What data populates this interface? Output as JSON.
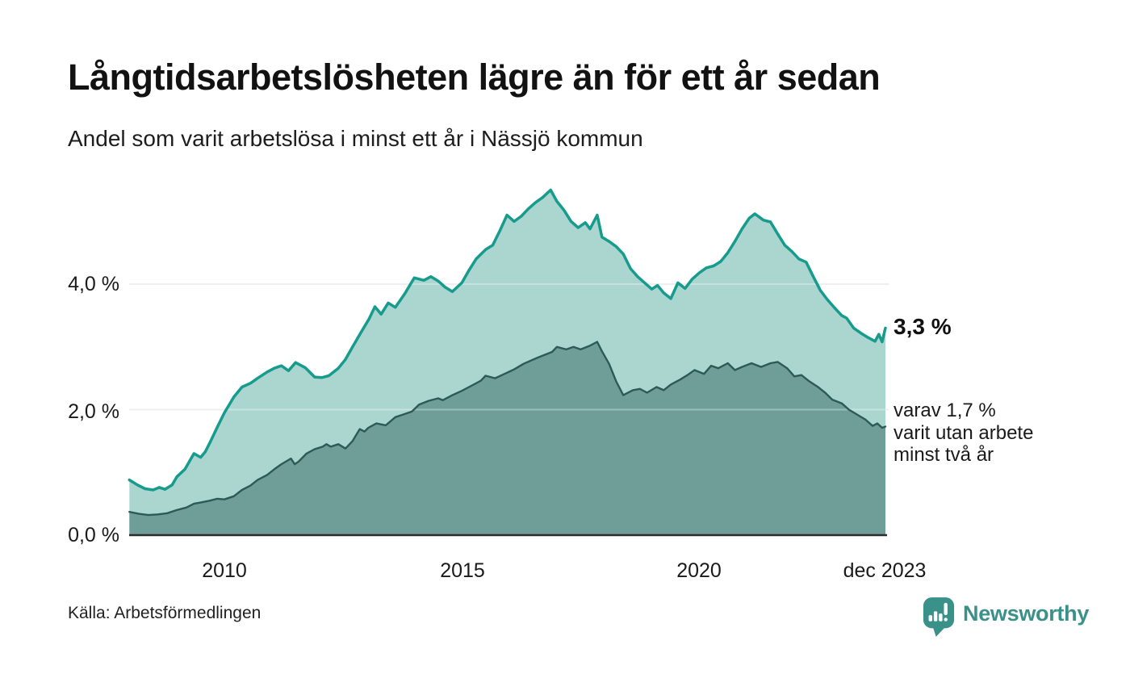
{
  "header": {
    "title": "Långtidsarbetslösheten lägre än för ett år sedan",
    "subtitle": "Andel som varit arbetslösa i minst ett år i Nässjö kommun"
  },
  "annotations": {
    "latest_total": "3,3 %",
    "secondary_line1": "varav 1,7 %",
    "secondary_line2": "varit utan arbete",
    "secondary_line3": "minst två år"
  },
  "footer": {
    "source": "Källa: Arbetsförmedlingen",
    "brand": "Newsworthy"
  },
  "colors": {
    "total_line": "#169b8d",
    "total_fill": "#abd5cf",
    "two_year_line": "#2e5a55",
    "two_year_fill": "#6f9e99",
    "gridline": "#e3e7e7",
    "axis_line": "#2b2b2b",
    "brand_teal": "#3a9189",
    "text": "#1a1a1a"
  },
  "chart_data": {
    "type": "area",
    "title": "Långtidsarbetslösheten lägre än för ett år sedan",
    "subtitle": "Andel som varit arbetslösa i minst ett år i Nässjö kommun",
    "unit": "%",
    "xlim": [
      2008.0,
      2023.92
    ],
    "ylim": [
      0,
      5.7
    ],
    "grid": "horizontal",
    "legend_position": "right-annotations",
    "x_ticks": [
      {
        "x": 2010,
        "label": "2010"
      },
      {
        "x": 2015,
        "label": "2015"
      },
      {
        "x": 2020,
        "label": "2020"
      },
      {
        "x": 2023.92,
        "label": "dec 2023"
      }
    ],
    "y_ticks": [
      {
        "value": 0,
        "label": "0,0 %"
      },
      {
        "value": 2,
        "label": "2,0 %"
      },
      {
        "value": 4,
        "label": "4,0 %"
      }
    ],
    "series": [
      {
        "name": "Andel arbetslösa minst ett år",
        "latest_label": "3,3 %",
        "color": "#169b8d",
        "fill": "#abd5cf",
        "points": [
          [
            2008.0,
            0.88
          ],
          [
            2008.17,
            0.8
          ],
          [
            2008.33,
            0.74
          ],
          [
            2008.5,
            0.72
          ],
          [
            2008.63,
            0.76
          ],
          [
            2008.75,
            0.73
          ],
          [
            2008.9,
            0.8
          ],
          [
            2009.0,
            0.93
          ],
          [
            2009.17,
            1.05
          ],
          [
            2009.36,
            1.3
          ],
          [
            2009.5,
            1.24
          ],
          [
            2009.6,
            1.33
          ],
          [
            2009.7,
            1.48
          ],
          [
            2009.85,
            1.72
          ],
          [
            2010.0,
            1.95
          ],
          [
            2010.2,
            2.2
          ],
          [
            2010.37,
            2.36
          ],
          [
            2010.55,
            2.42
          ],
          [
            2010.7,
            2.5
          ],
          [
            2010.9,
            2.6
          ],
          [
            2011.05,
            2.66
          ],
          [
            2011.2,
            2.7
          ],
          [
            2011.35,
            2.62
          ],
          [
            2011.5,
            2.75
          ],
          [
            2011.7,
            2.67
          ],
          [
            2011.9,
            2.52
          ],
          [
            2012.05,
            2.51
          ],
          [
            2012.2,
            2.54
          ],
          [
            2012.4,
            2.66
          ],
          [
            2012.55,
            2.8
          ],
          [
            2012.7,
            3.0
          ],
          [
            2012.9,
            3.26
          ],
          [
            2013.05,
            3.45
          ],
          [
            2013.17,
            3.64
          ],
          [
            2013.3,
            3.52
          ],
          [
            2013.45,
            3.7
          ],
          [
            2013.6,
            3.63
          ],
          [
            2013.8,
            3.85
          ],
          [
            2014.0,
            4.1
          ],
          [
            2014.2,
            4.06
          ],
          [
            2014.35,
            4.12
          ],
          [
            2014.5,
            4.05
          ],
          [
            2014.65,
            3.95
          ],
          [
            2014.8,
            3.88
          ],
          [
            2015.0,
            4.02
          ],
          [
            2015.15,
            4.22
          ],
          [
            2015.3,
            4.4
          ],
          [
            2015.5,
            4.55
          ],
          [
            2015.65,
            4.62
          ],
          [
            2015.8,
            4.85
          ],
          [
            2015.95,
            5.1
          ],
          [
            2016.1,
            5.0
          ],
          [
            2016.25,
            5.08
          ],
          [
            2016.4,
            5.2
          ],
          [
            2016.55,
            5.3
          ],
          [
            2016.7,
            5.38
          ],
          [
            2016.87,
            5.5
          ],
          [
            2017.0,
            5.32
          ],
          [
            2017.15,
            5.18
          ],
          [
            2017.3,
            5.0
          ],
          [
            2017.45,
            4.9
          ],
          [
            2017.6,
            4.98
          ],
          [
            2017.7,
            4.88
          ],
          [
            2017.85,
            5.1
          ],
          [
            2017.95,
            4.75
          ],
          [
            2018.1,
            4.68
          ],
          [
            2018.25,
            4.6
          ],
          [
            2018.4,
            4.48
          ],
          [
            2018.55,
            4.25
          ],
          [
            2018.7,
            4.12
          ],
          [
            2018.85,
            4.02
          ],
          [
            2019.0,
            3.92
          ],
          [
            2019.12,
            3.98
          ],
          [
            2019.25,
            3.86
          ],
          [
            2019.4,
            3.77
          ],
          [
            2019.55,
            4.02
          ],
          [
            2019.7,
            3.93
          ],
          [
            2019.85,
            4.08
          ],
          [
            2020.0,
            4.18
          ],
          [
            2020.15,
            4.26
          ],
          [
            2020.3,
            4.29
          ],
          [
            2020.45,
            4.36
          ],
          [
            2020.6,
            4.5
          ],
          [
            2020.75,
            4.68
          ],
          [
            2020.9,
            4.88
          ],
          [
            2021.05,
            5.05
          ],
          [
            2021.17,
            5.12
          ],
          [
            2021.35,
            5.02
          ],
          [
            2021.5,
            4.99
          ],
          [
            2021.65,
            4.8
          ],
          [
            2021.8,
            4.62
          ],
          [
            2021.95,
            4.52
          ],
          [
            2022.1,
            4.4
          ],
          [
            2022.25,
            4.35
          ],
          [
            2022.4,
            4.12
          ],
          [
            2022.55,
            3.9
          ],
          [
            2022.7,
            3.75
          ],
          [
            2022.85,
            3.62
          ],
          [
            2023.0,
            3.5
          ],
          [
            2023.1,
            3.46
          ],
          [
            2023.25,
            3.3
          ],
          [
            2023.4,
            3.22
          ],
          [
            2023.55,
            3.15
          ],
          [
            2023.7,
            3.09
          ],
          [
            2023.78,
            3.2
          ],
          [
            2023.85,
            3.08
          ],
          [
            2023.92,
            3.3
          ]
        ]
      },
      {
        "name": "varav arbetslösa minst två år",
        "latest_label": "1,7 %",
        "color": "#2e5a55",
        "fill": "#6f9e99",
        "points": [
          [
            2008.0,
            0.37
          ],
          [
            2008.2,
            0.34
          ],
          [
            2008.4,
            0.32
          ],
          [
            2008.6,
            0.33
          ],
          [
            2008.8,
            0.35
          ],
          [
            2009.0,
            0.4
          ],
          [
            2009.2,
            0.44
          ],
          [
            2009.36,
            0.5
          ],
          [
            2009.5,
            0.52
          ],
          [
            2009.7,
            0.55
          ],
          [
            2009.85,
            0.58
          ],
          [
            2010.0,
            0.57
          ],
          [
            2010.2,
            0.62
          ],
          [
            2010.37,
            0.72
          ],
          [
            2010.55,
            0.79
          ],
          [
            2010.7,
            0.88
          ],
          [
            2010.9,
            0.96
          ],
          [
            2011.05,
            1.05
          ],
          [
            2011.2,
            1.13
          ],
          [
            2011.4,
            1.22
          ],
          [
            2011.48,
            1.13
          ],
          [
            2011.56,
            1.17
          ],
          [
            2011.73,
            1.3
          ],
          [
            2011.9,
            1.37
          ],
          [
            2012.07,
            1.41
          ],
          [
            2012.15,
            1.45
          ],
          [
            2012.24,
            1.41
          ],
          [
            2012.4,
            1.45
          ],
          [
            2012.55,
            1.38
          ],
          [
            2012.7,
            1.5
          ],
          [
            2012.85,
            1.69
          ],
          [
            2012.95,
            1.65
          ],
          [
            2013.03,
            1.71
          ],
          [
            2013.2,
            1.78
          ],
          [
            2013.4,
            1.75
          ],
          [
            2013.6,
            1.88
          ],
          [
            2013.8,
            1.93
          ],
          [
            2013.95,
            1.97
          ],
          [
            2014.1,
            2.08
          ],
          [
            2014.3,
            2.14
          ],
          [
            2014.5,
            2.18
          ],
          [
            2014.6,
            2.15
          ],
          [
            2014.8,
            2.23
          ],
          [
            2015.0,
            2.3
          ],
          [
            2015.2,
            2.38
          ],
          [
            2015.4,
            2.46
          ],
          [
            2015.5,
            2.54
          ],
          [
            2015.7,
            2.5
          ],
          [
            2015.9,
            2.57
          ],
          [
            2016.1,
            2.64
          ],
          [
            2016.3,
            2.73
          ],
          [
            2016.6,
            2.83
          ],
          [
            2016.9,
            2.92
          ],
          [
            2017.0,
            3.0
          ],
          [
            2017.2,
            2.96
          ],
          [
            2017.35,
            3.0
          ],
          [
            2017.5,
            2.96
          ],
          [
            2017.7,
            3.02
          ],
          [
            2017.85,
            3.08
          ],
          [
            2017.95,
            2.93
          ],
          [
            2018.1,
            2.73
          ],
          [
            2018.25,
            2.45
          ],
          [
            2018.4,
            2.23
          ],
          [
            2018.6,
            2.31
          ],
          [
            2018.75,
            2.33
          ],
          [
            2018.9,
            2.27
          ],
          [
            2019.1,
            2.36
          ],
          [
            2019.25,
            2.31
          ],
          [
            2019.4,
            2.4
          ],
          [
            2019.6,
            2.48
          ],
          [
            2019.75,
            2.55
          ],
          [
            2019.9,
            2.63
          ],
          [
            2020.1,
            2.57
          ],
          [
            2020.25,
            2.7
          ],
          [
            2020.4,
            2.66
          ],
          [
            2020.6,
            2.74
          ],
          [
            2020.75,
            2.63
          ],
          [
            2020.9,
            2.68
          ],
          [
            2021.1,
            2.74
          ],
          [
            2021.3,
            2.68
          ],
          [
            2021.5,
            2.74
          ],
          [
            2021.65,
            2.76
          ],
          [
            2021.85,
            2.66
          ],
          [
            2022.0,
            2.53
          ],
          [
            2022.15,
            2.55
          ],
          [
            2022.3,
            2.46
          ],
          [
            2022.5,
            2.36
          ],
          [
            2022.65,
            2.27
          ],
          [
            2022.8,
            2.16
          ],
          [
            2023.0,
            2.1
          ],
          [
            2023.15,
            2.0
          ],
          [
            2023.3,
            1.93
          ],
          [
            2023.5,
            1.84
          ],
          [
            2023.65,
            1.74
          ],
          [
            2023.75,
            1.78
          ],
          [
            2023.85,
            1.71
          ],
          [
            2023.92,
            1.73
          ]
        ]
      }
    ]
  }
}
